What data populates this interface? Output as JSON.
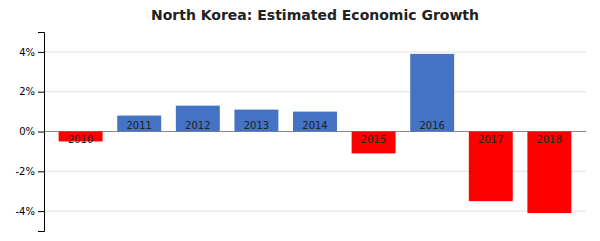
{
  "chart_data": {
    "type": "bar",
    "title": "North Korea: Estimated Economic Growth",
    "categories": [
      "2010",
      "2011",
      "2012",
      "2013",
      "2014",
      "2015",
      "2016",
      "2017",
      "2018"
    ],
    "values": [
      -0.5,
      0.8,
      1.3,
      1.1,
      1.0,
      -1.1,
      3.9,
      -3.5,
      -4.1
    ],
    "colors": [
      "#FF0000",
      "#4472C4",
      "#4472C4",
      "#4472C4",
      "#4472C4",
      "#FF0000",
      "#4472C4",
      "#FF0000",
      "#FF0000"
    ],
    "ylim": [
      -5,
      5
    ],
    "yticks": [
      {
        "value": -4,
        "label": "-4%"
      },
      {
        "value": -2,
        "label": "-2%"
      },
      {
        "value": 0,
        "label": "0%"
      },
      {
        "value": 2,
        "label": "2%"
      },
      {
        "value": 4,
        "label": "4%"
      }
    ],
    "grid": true
  }
}
